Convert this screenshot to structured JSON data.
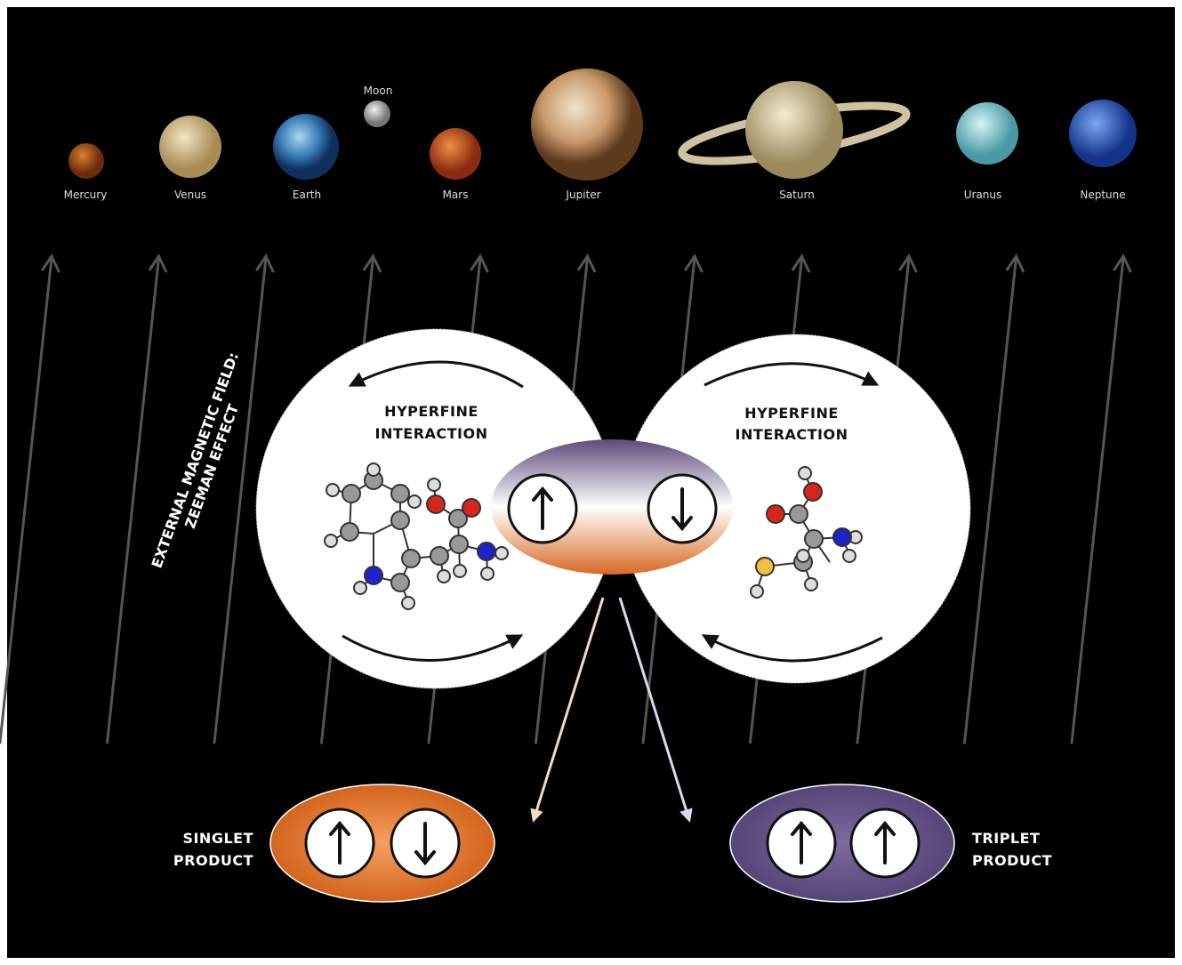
{
  "planets": [
    "Mercury",
    "Venus",
    "Earth",
    "Moon",
    "Mars",
    "Jupiter",
    "Saturn",
    "Uranus",
    "Neptune"
  ],
  "field_label": [
    "EXTERNAL MAGNETIC FIELD:",
    "ZEEMAN EFFECT"
  ],
  "hyperfine_left": [
    "HYPERFINE",
    "INTERACTION"
  ],
  "hyperfine_right": [
    "HYPERFINE",
    "INTERACTION"
  ],
  "singlet": [
    "SINGLET",
    "PRODUCT"
  ],
  "triplet": [
    "TRIPLET",
    "PRODUCT"
  ]
}
